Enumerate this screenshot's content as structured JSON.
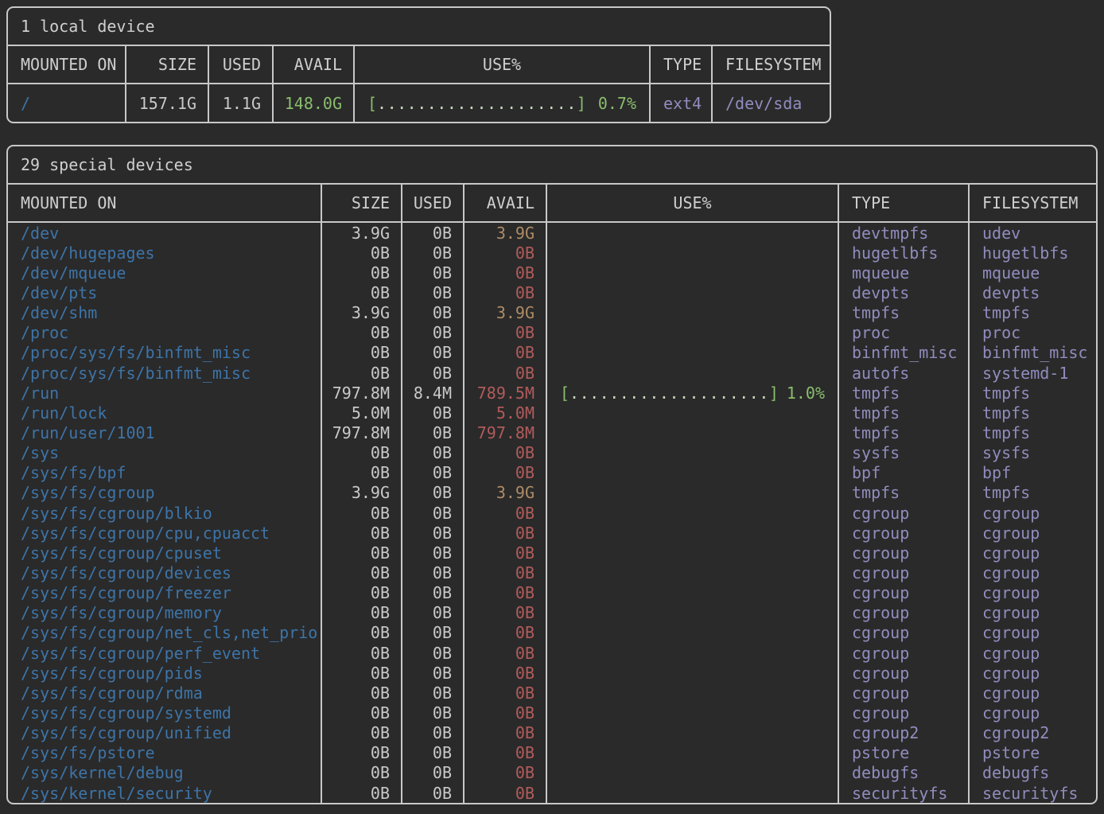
{
  "palette": {
    "background": "#2a2a2a",
    "border": "#c8c8c8",
    "text": "#c9c9c9",
    "mount_blue": "#3d74a8",
    "type_purple": "#918cbe",
    "green": "#8abe6e",
    "yellow": "#ae8c66",
    "red": "#b25b5b"
  },
  "headers": [
    "MOUNTED ON",
    "SIZE",
    "USED",
    "AVAIL",
    "USE%",
    "TYPE",
    "FILESYSTEM"
  ],
  "local": {
    "title": "1 local device",
    "rows": [
      {
        "mount": "/",
        "size": "157.1G",
        "used": "1.1G",
        "avail": "148.0G",
        "avail_color": "green",
        "bar_open": "[",
        "bar_dots": "....................",
        "bar_close": "]",
        "pct": "0.7%",
        "type": "ext4",
        "fs": "/dev/sda"
      }
    ]
  },
  "special": {
    "title": "29 special devices",
    "rows": [
      {
        "mount": "/dev",
        "size": "3.9G",
        "used": "0B",
        "avail": "3.9G",
        "avail_color": "yellow",
        "bar_open": "",
        "bar_dots": "",
        "bar_close": "",
        "pct": "",
        "type": "devtmpfs",
        "fs": "udev"
      },
      {
        "mount": "/dev/hugepages",
        "size": "0B",
        "used": "0B",
        "avail": "0B",
        "avail_color": "red",
        "bar_open": "",
        "bar_dots": "",
        "bar_close": "",
        "pct": "",
        "type": "hugetlbfs",
        "fs": "hugetlbfs"
      },
      {
        "mount": "/dev/mqueue",
        "size": "0B",
        "used": "0B",
        "avail": "0B",
        "avail_color": "red",
        "bar_open": "",
        "bar_dots": "",
        "bar_close": "",
        "pct": "",
        "type": "mqueue",
        "fs": "mqueue"
      },
      {
        "mount": "/dev/pts",
        "size": "0B",
        "used": "0B",
        "avail": "0B",
        "avail_color": "red",
        "bar_open": "",
        "bar_dots": "",
        "bar_close": "",
        "pct": "",
        "type": "devpts",
        "fs": "devpts"
      },
      {
        "mount": "/dev/shm",
        "size": "3.9G",
        "used": "0B",
        "avail": "3.9G",
        "avail_color": "yellow",
        "bar_open": "",
        "bar_dots": "",
        "bar_close": "",
        "pct": "",
        "type": "tmpfs",
        "fs": "tmpfs"
      },
      {
        "mount": "/proc",
        "size": "0B",
        "used": "0B",
        "avail": "0B",
        "avail_color": "red",
        "bar_open": "",
        "bar_dots": "",
        "bar_close": "",
        "pct": "",
        "type": "proc",
        "fs": "proc"
      },
      {
        "mount": "/proc/sys/fs/binfmt_misc",
        "size": "0B",
        "used": "0B",
        "avail": "0B",
        "avail_color": "red",
        "bar_open": "",
        "bar_dots": "",
        "bar_close": "",
        "pct": "",
        "type": "binfmt_misc",
        "fs": "binfmt_misc"
      },
      {
        "mount": "/proc/sys/fs/binfmt_misc",
        "size": "0B",
        "used": "0B",
        "avail": "0B",
        "avail_color": "red",
        "bar_open": "",
        "bar_dots": "",
        "bar_close": "",
        "pct": "",
        "type": "autofs",
        "fs": "systemd-1"
      },
      {
        "mount": "/run",
        "size": "797.8M",
        "used": "8.4M",
        "avail": "789.5M",
        "avail_color": "red",
        "bar_open": "[",
        "bar_dots": "....................",
        "bar_close": "]",
        "pct": "1.0%",
        "type": "tmpfs",
        "fs": "tmpfs"
      },
      {
        "mount": "/run/lock",
        "size": "5.0M",
        "used": "0B",
        "avail": "5.0M",
        "avail_color": "red",
        "bar_open": "",
        "bar_dots": "",
        "bar_close": "",
        "pct": "",
        "type": "tmpfs",
        "fs": "tmpfs"
      },
      {
        "mount": "/run/user/1001",
        "size": "797.8M",
        "used": "0B",
        "avail": "797.8M",
        "avail_color": "red",
        "bar_open": "",
        "bar_dots": "",
        "bar_close": "",
        "pct": "",
        "type": "tmpfs",
        "fs": "tmpfs"
      },
      {
        "mount": "/sys",
        "size": "0B",
        "used": "0B",
        "avail": "0B",
        "avail_color": "red",
        "bar_open": "",
        "bar_dots": "",
        "bar_close": "",
        "pct": "",
        "type": "sysfs",
        "fs": "sysfs"
      },
      {
        "mount": "/sys/fs/bpf",
        "size": "0B",
        "used": "0B",
        "avail": "0B",
        "avail_color": "red",
        "bar_open": "",
        "bar_dots": "",
        "bar_close": "",
        "pct": "",
        "type": "bpf",
        "fs": "bpf"
      },
      {
        "mount": "/sys/fs/cgroup",
        "size": "3.9G",
        "used": "0B",
        "avail": "3.9G",
        "avail_color": "yellow",
        "bar_open": "",
        "bar_dots": "",
        "bar_close": "",
        "pct": "",
        "type": "tmpfs",
        "fs": "tmpfs"
      },
      {
        "mount": "/sys/fs/cgroup/blkio",
        "size": "0B",
        "used": "0B",
        "avail": "0B",
        "avail_color": "red",
        "bar_open": "",
        "bar_dots": "",
        "bar_close": "",
        "pct": "",
        "type": "cgroup",
        "fs": "cgroup"
      },
      {
        "mount": "/sys/fs/cgroup/cpu,cpuacct",
        "size": "0B",
        "used": "0B",
        "avail": "0B",
        "avail_color": "red",
        "bar_open": "",
        "bar_dots": "",
        "bar_close": "",
        "pct": "",
        "type": "cgroup",
        "fs": "cgroup"
      },
      {
        "mount": "/sys/fs/cgroup/cpuset",
        "size": "0B",
        "used": "0B",
        "avail": "0B",
        "avail_color": "red",
        "bar_open": "",
        "bar_dots": "",
        "bar_close": "",
        "pct": "",
        "type": "cgroup",
        "fs": "cgroup"
      },
      {
        "mount": "/sys/fs/cgroup/devices",
        "size": "0B",
        "used": "0B",
        "avail": "0B",
        "avail_color": "red",
        "bar_open": "",
        "bar_dots": "",
        "bar_close": "",
        "pct": "",
        "type": "cgroup",
        "fs": "cgroup"
      },
      {
        "mount": "/sys/fs/cgroup/freezer",
        "size": "0B",
        "used": "0B",
        "avail": "0B",
        "avail_color": "red",
        "bar_open": "",
        "bar_dots": "",
        "bar_close": "",
        "pct": "",
        "type": "cgroup",
        "fs": "cgroup"
      },
      {
        "mount": "/sys/fs/cgroup/memory",
        "size": "0B",
        "used": "0B",
        "avail": "0B",
        "avail_color": "red",
        "bar_open": "",
        "bar_dots": "",
        "bar_close": "",
        "pct": "",
        "type": "cgroup",
        "fs": "cgroup"
      },
      {
        "mount": "/sys/fs/cgroup/net_cls,net_prio",
        "size": "0B",
        "used": "0B",
        "avail": "0B",
        "avail_color": "red",
        "bar_open": "",
        "bar_dots": "",
        "bar_close": "",
        "pct": "",
        "type": "cgroup",
        "fs": "cgroup"
      },
      {
        "mount": "/sys/fs/cgroup/perf_event",
        "size": "0B",
        "used": "0B",
        "avail": "0B",
        "avail_color": "red",
        "bar_open": "",
        "bar_dots": "",
        "bar_close": "",
        "pct": "",
        "type": "cgroup",
        "fs": "cgroup"
      },
      {
        "mount": "/sys/fs/cgroup/pids",
        "size": "0B",
        "used": "0B",
        "avail": "0B",
        "avail_color": "red",
        "bar_open": "",
        "bar_dots": "",
        "bar_close": "",
        "pct": "",
        "type": "cgroup",
        "fs": "cgroup"
      },
      {
        "mount": "/sys/fs/cgroup/rdma",
        "size": "0B",
        "used": "0B",
        "avail": "0B",
        "avail_color": "red",
        "bar_open": "",
        "bar_dots": "",
        "bar_close": "",
        "pct": "",
        "type": "cgroup",
        "fs": "cgroup"
      },
      {
        "mount": "/sys/fs/cgroup/systemd",
        "size": "0B",
        "used": "0B",
        "avail": "0B",
        "avail_color": "red",
        "bar_open": "",
        "bar_dots": "",
        "bar_close": "",
        "pct": "",
        "type": "cgroup",
        "fs": "cgroup"
      },
      {
        "mount": "/sys/fs/cgroup/unified",
        "size": "0B",
        "used": "0B",
        "avail": "0B",
        "avail_color": "red",
        "bar_open": "",
        "bar_dots": "",
        "bar_close": "",
        "pct": "",
        "type": "cgroup2",
        "fs": "cgroup2"
      },
      {
        "mount": "/sys/fs/pstore",
        "size": "0B",
        "used": "0B",
        "avail": "0B",
        "avail_color": "red",
        "bar_open": "",
        "bar_dots": "",
        "bar_close": "",
        "pct": "",
        "type": "pstore",
        "fs": "pstore"
      },
      {
        "mount": "/sys/kernel/debug",
        "size": "0B",
        "used": "0B",
        "avail": "0B",
        "avail_color": "red",
        "bar_open": "",
        "bar_dots": "",
        "bar_close": "",
        "pct": "",
        "type": "debugfs",
        "fs": "debugfs"
      },
      {
        "mount": "/sys/kernel/security",
        "size": "0B",
        "used": "0B",
        "avail": "0B",
        "avail_color": "red",
        "bar_open": "",
        "bar_dots": "",
        "bar_close": "",
        "pct": "",
        "type": "securityfs",
        "fs": "securityfs"
      }
    ]
  }
}
